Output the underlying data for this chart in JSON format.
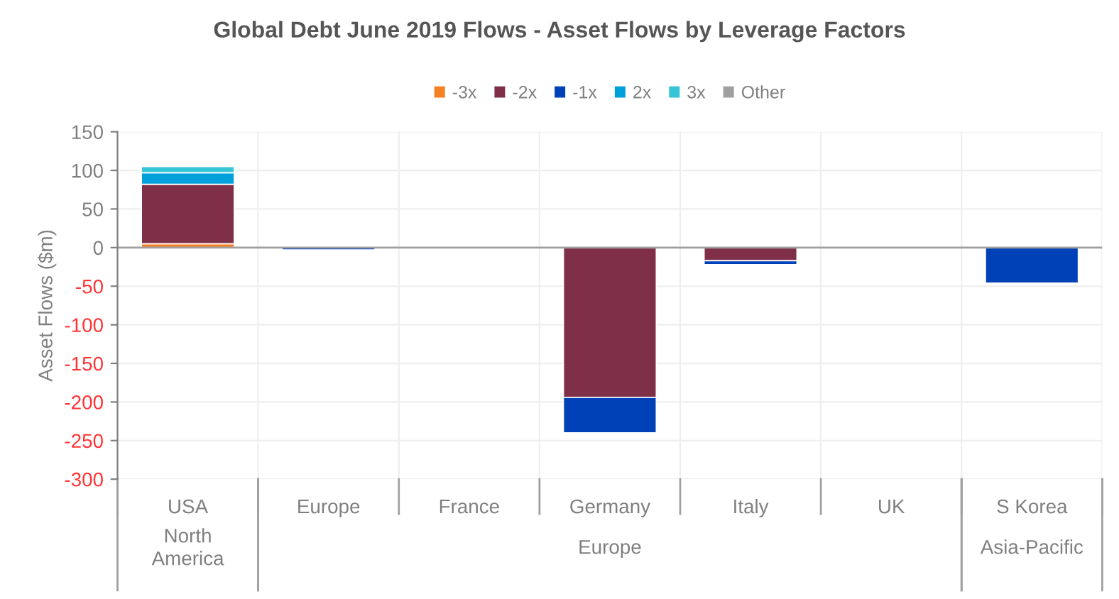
{
  "chart_data": {
    "type": "bar",
    "stacked": true,
    "title": "Global Debt June 2019 Flows - Asset Flows by Leverage Factors",
    "ylabel": "Asset Flows ($m)",
    "categories": [
      "USA",
      "Europe",
      "France",
      "Germany",
      "Italy",
      "UK",
      "S Korea"
    ],
    "series": [
      {
        "name": "-3x",
        "color": "#f58220",
        "values": [
          5,
          null,
          null,
          null,
          null,
          null,
          null
        ]
      },
      {
        "name": "-2x",
        "color": "#7f3048",
        "values": [
          77,
          null,
          null,
          -194,
          -17,
          null,
          null
        ]
      },
      {
        "name": "-1x",
        "color": "#0041b8",
        "values": [
          null,
          -3,
          null,
          -46,
          -5,
          null,
          -46
        ]
      },
      {
        "name": "2x",
        "color": "#00a0dc",
        "values": [
          15,
          null,
          null,
          null,
          null,
          null,
          null
        ]
      },
      {
        "name": "3x",
        "color": "#36c5d6",
        "values": [
          8,
          null,
          null,
          null,
          null,
          null,
          null
        ]
      },
      {
        "name": "Other",
        "color": "#a0a0a0",
        "values": [
          null,
          null,
          null,
          null,
          null,
          null,
          null
        ]
      }
    ],
    "annotations": [
      "North\nAmerica",
      "Europe",
      "Asia-Pacific"
    ],
    "ylim": [
      -300,
      150
    ],
    "yticks": [
      -300,
      -250,
      -200,
      -150,
      -100,
      -50,
      0,
      50,
      100,
      150
    ],
    "grid": true,
    "legend": "top"
  }
}
